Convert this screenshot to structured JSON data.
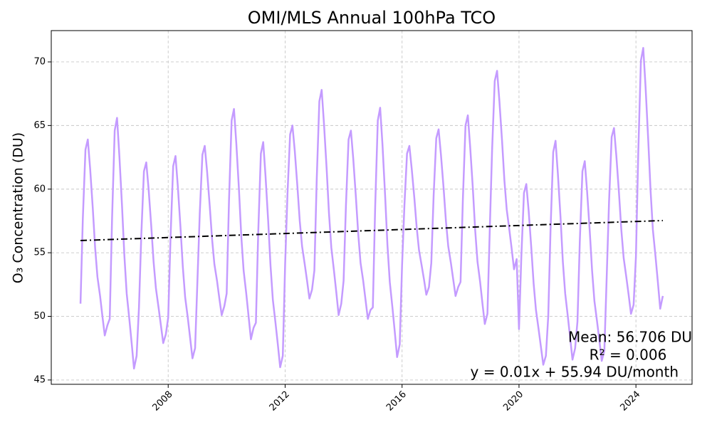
{
  "chart_data": {
    "type": "line",
    "title": "OMI/MLS Annual 100hPa TCO",
    "y_label": "O₃ Concentration (DU)",
    "annotations": [
      "Mean: 56.706 DU",
      "R² = 0.006",
      "y = 0.01x + 55.94 DU/month"
    ],
    "xlim": [
      2004.0,
      2025.92
    ],
    "ylim": [
      44.66,
      72.46
    ],
    "xticks": [
      2008,
      2012,
      2016,
      2020,
      2024
    ],
    "yticks": [
      45,
      50,
      55,
      60,
      65,
      70
    ],
    "grid": true,
    "x": [
      2005.0,
      2005.08,
      2005.17,
      2005.25,
      2005.33,
      2005.42,
      2005.5,
      2005.58,
      2005.67,
      2005.75,
      2005.83,
      2005.92,
      2006.0,
      2006.08,
      2006.17,
      2006.25,
      2006.33,
      2006.42,
      2006.5,
      2006.58,
      2006.67,
      2006.75,
      2006.83,
      2006.92,
      2007.0,
      2007.08,
      2007.17,
      2007.25,
      2007.33,
      2007.42,
      2007.5,
      2007.58,
      2007.67,
      2007.75,
      2007.83,
      2007.92,
      2008.0,
      2008.08,
      2008.17,
      2008.25,
      2008.33,
      2008.42,
      2008.5,
      2008.58,
      2008.67,
      2008.75,
      2008.83,
      2008.92,
      2009.0,
      2009.08,
      2009.17,
      2009.25,
      2009.33,
      2009.42,
      2009.5,
      2009.58,
      2009.67,
      2009.75,
      2009.83,
      2009.92,
      2010.0,
      2010.08,
      2010.17,
      2010.25,
      2010.33,
      2010.42,
      2010.5,
      2010.58,
      2010.67,
      2010.75,
      2010.83,
      2010.92,
      2011.0,
      2011.08,
      2011.17,
      2011.25,
      2011.33,
      2011.42,
      2011.5,
      2011.58,
      2011.67,
      2011.75,
      2011.83,
      2011.92,
      2012.0,
      2012.08,
      2012.17,
      2012.25,
      2012.33,
      2012.42,
      2012.5,
      2012.58,
      2012.67,
      2012.75,
      2012.83,
      2012.92,
      2013.0,
      2013.08,
      2013.17,
      2013.25,
      2013.33,
      2013.42,
      2013.5,
      2013.58,
      2013.67,
      2013.75,
      2013.83,
      2013.92,
      2014.0,
      2014.08,
      2014.17,
      2014.25,
      2014.33,
      2014.42,
      2014.5,
      2014.58,
      2014.67,
      2014.75,
      2014.83,
      2014.92,
      2015.0,
      2015.08,
      2015.17,
      2015.25,
      2015.33,
      2015.42,
      2015.5,
      2015.58,
      2015.67,
      2015.75,
      2015.83,
      2015.92,
      2016.0,
      2016.08,
      2016.17,
      2016.25,
      2016.33,
      2016.42,
      2016.5,
      2016.58,
      2016.67,
      2016.75,
      2016.83,
      2016.92,
      2017.0,
      2017.08,
      2017.17,
      2017.25,
      2017.33,
      2017.42,
      2017.5,
      2017.58,
      2017.67,
      2017.75,
      2017.83,
      2017.92,
      2018.0,
      2018.08,
      2018.17,
      2018.25,
      2018.33,
      2018.42,
      2018.5,
      2018.58,
      2018.67,
      2018.75,
      2018.83,
      2018.92,
      2019.0,
      2019.08,
      2019.17,
      2019.25,
      2019.33,
      2019.42,
      2019.5,
      2019.58,
      2019.67,
      2019.75,
      2019.83,
      2019.92,
      2020.0,
      2020.08,
      2020.17,
      2020.25,
      2020.33,
      2020.42,
      2020.5,
      2020.58,
      2020.67,
      2020.75,
      2020.83,
      2020.92,
      2021.0,
      2021.08,
      2021.17,
      2021.25,
      2021.33,
      2021.42,
      2021.5,
      2021.58,
      2021.67,
      2021.75,
      2021.83,
      2021.92,
      2022.0,
      2022.08,
      2022.17,
      2022.25,
      2022.33,
      2022.42,
      2022.5,
      2022.58,
      2022.67,
      2022.75,
      2022.83,
      2022.92,
      2023.0,
      2023.08,
      2023.17,
      2023.25,
      2023.33,
      2023.42,
      2023.5,
      2023.58,
      2023.67,
      2023.75,
      2023.83,
      2023.92,
      2024.0,
      2024.08,
      2024.17,
      2024.25,
      2024.33,
      2024.42,
      2024.5,
      2024.58,
      2024.67,
      2024.75,
      2024.83,
      2024.92
    ],
    "series": [
      {
        "color": "#c49bff",
        "style": "solid",
        "values": [
          51.0,
          57.7,
          63.1,
          63.9,
          61.6,
          58.5,
          55.4,
          53.1,
          51.6,
          50.0,
          48.5,
          49.3,
          49.8,
          57.7,
          64.6,
          65.6,
          62.6,
          58.7,
          54.8,
          51.8,
          49.8,
          47.9,
          45.9,
          46.9,
          50.7,
          56.4,
          61.4,
          62.1,
          60.0,
          57.1,
          54.3,
          52.2,
          50.7,
          49.3,
          47.9,
          48.6,
          49.9,
          56.2,
          61.8,
          62.6,
          60.2,
          57.0,
          53.9,
          51.5,
          49.9,
          48.3,
          46.7,
          47.5,
          52.8,
          58.1,
          62.7,
          63.4,
          61.4,
          58.7,
          56.1,
          54.1,
          52.8,
          51.4,
          50.1,
          50.8,
          51.8,
          59.1,
          65.4,
          66.3,
          63.6,
          60.0,
          56.3,
          53.6,
          51.8,
          50.0,
          48.2,
          49.1,
          49.5,
          56.6,
          62.8,
          63.7,
          61.0,
          57.5,
          54.0,
          51.3,
          49.5,
          47.8,
          46.0,
          46.9,
          54.1,
          59.6,
          64.3,
          65.0,
          63.0,
          60.2,
          57.5,
          55.5,
          54.1,
          52.8,
          51.4,
          52.1,
          53.6,
          60.7,
          66.9,
          67.8,
          65.1,
          61.6,
          58.1,
          55.4,
          53.6,
          51.9,
          50.1,
          51.0,
          52.8,
          58.7,
          63.9,
          64.6,
          62.4,
          59.4,
          56.5,
          54.2,
          52.8,
          51.3,
          49.8,
          50.5,
          50.7,
          58.6,
          65.4,
          66.4,
          63.5,
          59.5,
          55.6,
          52.7,
          50.7,
          48.8,
          46.8,
          47.8,
          54.0,
          58.7,
          62.8,
          63.4,
          61.6,
          59.3,
          57.0,
          55.2,
          54.0,
          52.9,
          51.7,
          52.3,
          54.2,
          59.5,
          64.0,
          64.7,
          62.7,
          60.1,
          57.5,
          55.5,
          54.2,
          52.9,
          51.6,
          52.3,
          52.7,
          59.2,
          65.0,
          65.8,
          63.3,
          60.1,
          56.8,
          54.3,
          52.7,
          51.0,
          49.4,
          50.2,
          56.8,
          63.1,
          68.5,
          69.3,
          66.9,
          63.8,
          60.7,
          58.4,
          56.8,
          55.3,
          53.7,
          54.5,
          49.0,
          54.7,
          59.7,
          60.4,
          58.3,
          55.4,
          52.6,
          50.5,
          49.0,
          47.6,
          46.2,
          46.9,
          50.0,
          56.9,
          62.9,
          63.8,
          61.2,
          57.8,
          54.3,
          51.8,
          50.0,
          48.3,
          46.6,
          47.5,
          49.6,
          55.9,
          61.4,
          62.2,
          59.8,
          56.7,
          53.6,
          51.2,
          49.6,
          48.1,
          46.5,
          47.3,
          53.1,
          59.0,
          64.1,
          64.8,
          62.6,
          59.7,
          56.8,
          54.6,
          53.1,
          51.7,
          50.2,
          50.9,
          54.7,
          62.9,
          70.1,
          71.1,
          68.0,
          63.9,
          59.9,
          56.8,
          54.7,
          52.7,
          50.6,
          51.6
        ]
      },
      {
        "color": "#000000",
        "style": "dashdot",
        "x": [
          2005.0,
          2024.92
        ],
        "values": [
          55.96,
          57.53
        ]
      }
    ]
  }
}
